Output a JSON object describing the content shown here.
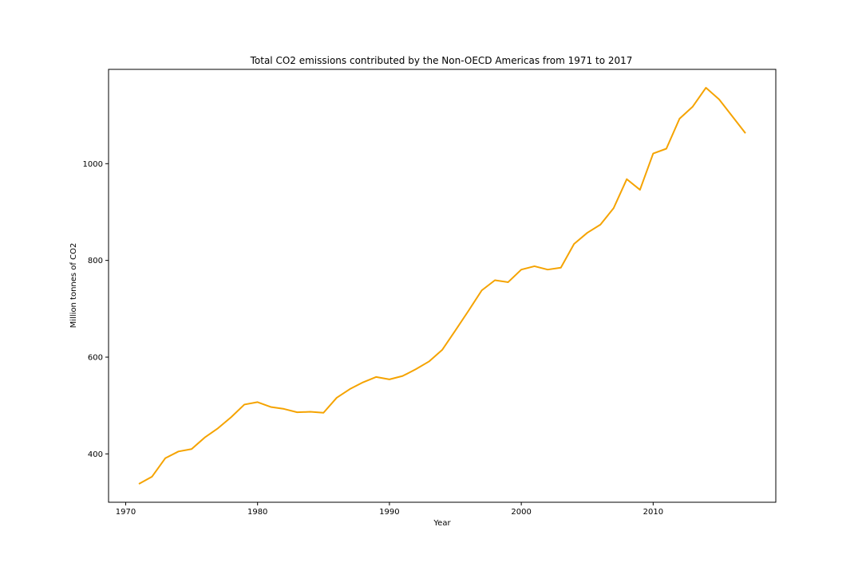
{
  "chart_data": {
    "type": "line",
    "title": "Total CO2 emissions contributed by the Non-OECD Americas from 1971 to 2017",
    "xlabel": "Year",
    "ylabel": "Million tonnes of CO2",
    "xlim": [
      1968.7,
      2019.3
    ],
    "ylim": [
      300,
      1195
    ],
    "xticks": [
      1970,
      1980,
      1990,
      2000,
      2010
    ],
    "yticks": [
      400,
      600,
      800,
      1000
    ],
    "grid": false,
    "line_color": "#f5a300",
    "series": [
      {
        "x": [
          1971,
          1972,
          1973,
          1974,
          1975,
          1976,
          1977,
          1978,
          1979,
          1980,
          1981,
          1982,
          1983,
          1984,
          1985,
          1986,
          1987,
          1988,
          1989,
          1990,
          1991,
          1992,
          1993,
          1994,
          1995,
          1996,
          1997,
          1998,
          1999,
          2000,
          2001,
          2002,
          2003,
          2004,
          2005,
          2006,
          2007,
          2008,
          2009,
          2010,
          2011,
          2012,
          2013,
          2014,
          2015,
          2016,
          2017
        ],
        "values": [
          338,
          353,
          391,
          405,
          410,
          434,
          453,
          476,
          502,
          507,
          497,
          493,
          486,
          487,
          485,
          516,
          534,
          548,
          559,
          554,
          561,
          575,
          591,
          615,
          655,
          696,
          738,
          759,
          755,
          781,
          788,
          781,
          785,
          834,
          857,
          874,
          908,
          968,
          946,
          1021,
          1031,
          1093,
          1118,
          1157,
          1133,
          1098,
          1063
        ]
      }
    ]
  }
}
